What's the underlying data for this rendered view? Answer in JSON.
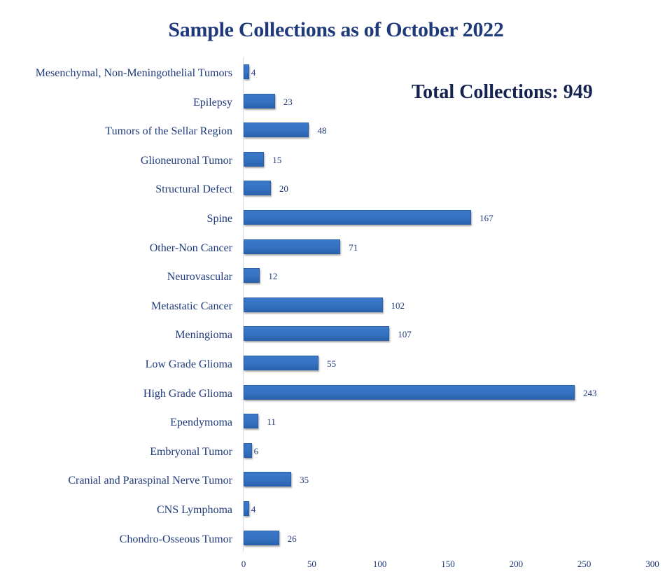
{
  "chart_data": {
    "type": "bar",
    "orientation": "horizontal",
    "title": "Sample Collections as of October 2022",
    "annotation": "Total Collections: 949",
    "categories": [
      "Mesenchymal, Non-Meningothelial Tumors",
      "Epilepsy",
      "Tumors of the Sellar Region",
      "Glioneuronal Tumor",
      "Structural Defect",
      "Spine",
      "Other-Non Cancer",
      "Neurovascular",
      "Metastatic Cancer",
      "Meningioma",
      "Low Grade Glioma",
      "High Grade Glioma",
      "Ependymoma",
      "Embryonal Tumor",
      "Cranial and Paraspinal Nerve Tumor",
      "CNS Lymphoma",
      "Chondro-Osseous Tumor"
    ],
    "values": [
      4,
      23,
      48,
      15,
      20,
      167,
      71,
      12,
      102,
      107,
      55,
      243,
      11,
      6,
      35,
      4,
      26
    ],
    "xlabel": "",
    "ylabel": "",
    "xlim": [
      0,
      300
    ],
    "xticks": [
      "0",
      "50",
      "100",
      "150",
      "200",
      "250",
      "300"
    ],
    "grid": false,
    "legend": "none",
    "data_labels": true,
    "bar_color": "#3573c2"
  },
  "title": "Sample Collections as of October 2022",
  "total_label": "Total Collections: 949"
}
